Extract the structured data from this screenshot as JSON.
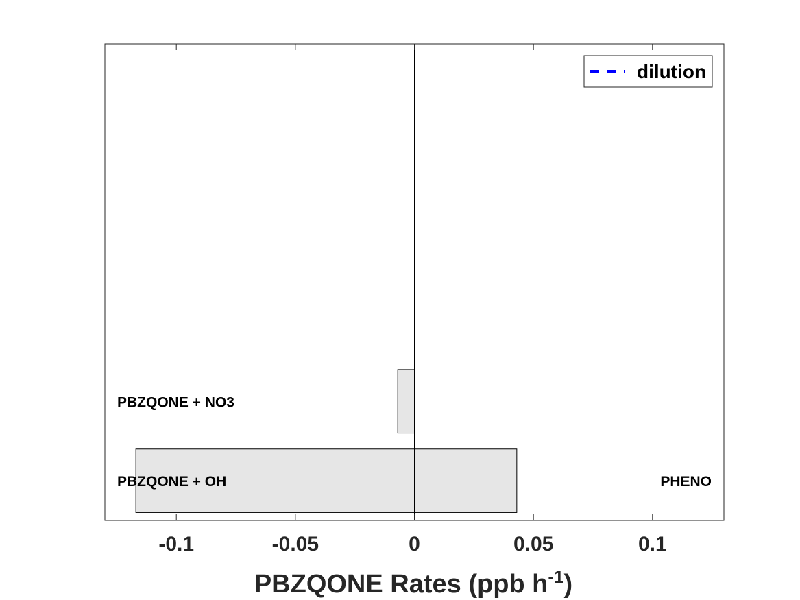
{
  "chart_data": {
    "type": "bar",
    "orientation": "horizontal",
    "xlabel_main": "PBZQONE Rates (ppb h",
    "xlabel_sup": "-1",
    "xlabel_close": ")",
    "xlim": [
      -0.13,
      0.13
    ],
    "xticks": [
      {
        "value": -0.1,
        "label": "-0.1"
      },
      {
        "value": -0.05,
        "label": "-0.05"
      },
      {
        "value": 0,
        "label": "0"
      },
      {
        "value": 0.05,
        "label": "0.05"
      },
      {
        "value": 0.1,
        "label": "0.1"
      }
    ],
    "rows": [
      {
        "loss_label": "PBZQONE + OH",
        "loss": -0.117,
        "prod_label": "PHENO",
        "prod": 0.043
      },
      {
        "loss_label": "PBZQONE + NO3",
        "loss": -0.007,
        "prod_label": "",
        "prod": 0
      }
    ],
    "n_rows_slots": 6,
    "bar_fill": "#e6e6e6",
    "legend": {
      "label": "dilution",
      "line_color": "#0000ff",
      "line_style": "dashed",
      "position": "top-right"
    }
  }
}
